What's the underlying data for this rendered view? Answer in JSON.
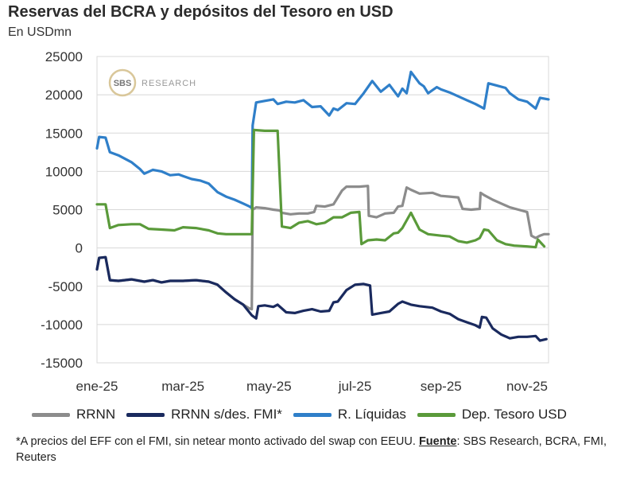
{
  "header": {
    "title": "Reservas del BCRA y depósitos del Tesoro en USD",
    "subtitle": "En USDmn"
  },
  "watermark": {
    "logo": "SBS",
    "text": "RESEARCH"
  },
  "footnote": {
    "text": "*A precios del EFF con el FMI, sin netear monto activado del swap con EEUU.",
    "source_label": "Fuente",
    "source_text": ": SBS Research, BCRA, FMI, Reuters"
  },
  "colors": {
    "RRNN": "#8c8c8c",
    "RRNN s/des. FMI*": "#1a2a5e",
    "R. Líquidas": "#2f7fc9",
    "Dep. Tesoro USD": "#5a9a3a",
    "grid": "#d8d8d8"
  },
  "chart_data": {
    "type": "line",
    "title": "Reservas del BCRA y depósitos del Tesoro en USD",
    "ylabel": "En USDmn",
    "ylim": [
      -15000,
      25000
    ],
    "yticks": [
      25000,
      20000,
      15000,
      10000,
      5000,
      0,
      -5000,
      -10000,
      -15000
    ],
    "ytick_labels": [
      "25000",
      "20000",
      "15000",
      "10000",
      "5000",
      "0",
      "-5000",
      "-10000",
      "-15000"
    ],
    "xlim": [
      0,
      10.5
    ],
    "xticks": [
      0,
      2,
      4,
      6,
      8,
      10
    ],
    "xtick_labels": [
      "ene-25",
      "mar-25",
      "may-25",
      "jul-25",
      "sep-25",
      "nov-25"
    ],
    "legend_position": "bottom",
    "series": [
      {
        "name": "RRNN",
        "points": [
          [
            0,
            -2800
          ],
          [
            0.05,
            -1300
          ],
          [
            0.2,
            -1200
          ],
          [
            0.3,
            -4200
          ],
          [
            0.5,
            -4300
          ],
          [
            0.8,
            -4100
          ],
          [
            1.1,
            -4400
          ],
          [
            1.3,
            -4200
          ],
          [
            1.5,
            -4500
          ],
          [
            1.7,
            -4300
          ],
          [
            2.0,
            -4300
          ],
          [
            2.3,
            -4200
          ],
          [
            2.6,
            -4400
          ],
          [
            2.8,
            -4800
          ],
          [
            3.0,
            -5800
          ],
          [
            3.2,
            -6700
          ],
          [
            3.4,
            -7400
          ],
          [
            3.55,
            -7900
          ],
          [
            3.6,
            -8000
          ],
          [
            3.62,
            5000
          ],
          [
            3.7,
            5300
          ],
          [
            3.9,
            5200
          ],
          [
            4.1,
            5000
          ],
          [
            4.25,
            4900
          ],
          [
            4.3,
            4600
          ],
          [
            4.5,
            4400
          ],
          [
            4.7,
            4500
          ],
          [
            4.9,
            4500
          ],
          [
            5.05,
            4700
          ],
          [
            5.1,
            5500
          ],
          [
            5.3,
            5400
          ],
          [
            5.5,
            5700
          ],
          [
            5.7,
            7500
          ],
          [
            5.8,
            8000
          ],
          [
            6.1,
            8000
          ],
          [
            6.3,
            8100
          ],
          [
            6.32,
            4200
          ],
          [
            6.5,
            4000
          ],
          [
            6.7,
            4500
          ],
          [
            6.9,
            4600
          ],
          [
            7.0,
            5400
          ],
          [
            7.1,
            5500
          ],
          [
            7.2,
            7900
          ],
          [
            7.3,
            7600
          ],
          [
            7.5,
            7100
          ],
          [
            7.8,
            7200
          ],
          [
            8.0,
            6800
          ],
          [
            8.2,
            6700
          ],
          [
            8.4,
            6600
          ],
          [
            8.5,
            5100
          ],
          [
            8.7,
            5000
          ],
          [
            8.9,
            5100
          ],
          [
            8.92,
            7200
          ],
          [
            9.0,
            6900
          ],
          [
            9.2,
            6300
          ],
          [
            9.4,
            5800
          ],
          [
            9.6,
            5300
          ],
          [
            9.8,
            5000
          ],
          [
            10.0,
            4700
          ],
          [
            10.1,
            1600
          ],
          [
            10.2,
            1300
          ],
          [
            10.3,
            1600
          ],
          [
            10.4,
            1800
          ],
          [
            10.5,
            1800
          ]
        ]
      },
      {
        "name": "RRNN s/des. FMI*",
        "points": [
          [
            0,
            -2800
          ],
          [
            0.05,
            -1300
          ],
          [
            0.2,
            -1200
          ],
          [
            0.3,
            -4200
          ],
          [
            0.5,
            -4300
          ],
          [
            0.8,
            -4100
          ],
          [
            1.1,
            -4400
          ],
          [
            1.3,
            -4200
          ],
          [
            1.5,
            -4500
          ],
          [
            1.7,
            -4300
          ],
          [
            2.0,
            -4300
          ],
          [
            2.3,
            -4200
          ],
          [
            2.6,
            -4400
          ],
          [
            2.8,
            -4800
          ],
          [
            3.0,
            -5800
          ],
          [
            3.2,
            -6700
          ],
          [
            3.4,
            -7400
          ],
          [
            3.6,
            -8800
          ],
          [
            3.7,
            -9200
          ],
          [
            3.75,
            -7600
          ],
          [
            3.9,
            -7500
          ],
          [
            4.1,
            -7700
          ],
          [
            4.2,
            -7400
          ],
          [
            4.4,
            -8400
          ],
          [
            4.6,
            -8500
          ],
          [
            4.8,
            -8200
          ],
          [
            5.0,
            -8000
          ],
          [
            5.2,
            -8300
          ],
          [
            5.4,
            -8200
          ],
          [
            5.5,
            -7100
          ],
          [
            5.6,
            -7000
          ],
          [
            5.8,
            -5500
          ],
          [
            6.0,
            -4800
          ],
          [
            6.2,
            -4700
          ],
          [
            6.35,
            -4900
          ],
          [
            6.4,
            -8700
          ],
          [
            6.6,
            -8500
          ],
          [
            6.8,
            -8300
          ],
          [
            7.0,
            -7300
          ],
          [
            7.1,
            -7000
          ],
          [
            7.3,
            -7400
          ],
          [
            7.5,
            -7600
          ],
          [
            7.8,
            -7800
          ],
          [
            8.0,
            -8300
          ],
          [
            8.2,
            -8600
          ],
          [
            8.4,
            -9300
          ],
          [
            8.6,
            -9700
          ],
          [
            8.8,
            -10100
          ],
          [
            8.9,
            -10400
          ],
          [
            8.95,
            -9000
          ],
          [
            9.05,
            -9100
          ],
          [
            9.2,
            -10500
          ],
          [
            9.4,
            -11300
          ],
          [
            9.6,
            -11800
          ],
          [
            9.8,
            -11600
          ],
          [
            10.0,
            -11600
          ],
          [
            10.2,
            -11500
          ],
          [
            10.3,
            -12100
          ],
          [
            10.45,
            -11900
          ]
        ]
      },
      {
        "name": "R. Líquidas",
        "points": [
          [
            0,
            13000
          ],
          [
            0.05,
            14500
          ],
          [
            0.2,
            14400
          ],
          [
            0.3,
            12500
          ],
          [
            0.5,
            12100
          ],
          [
            0.8,
            11200
          ],
          [
            1.0,
            10300
          ],
          [
            1.1,
            9700
          ],
          [
            1.3,
            10200
          ],
          [
            1.5,
            10000
          ],
          [
            1.7,
            9500
          ],
          [
            1.9,
            9600
          ],
          [
            2.0,
            9400
          ],
          [
            2.2,
            9000
          ],
          [
            2.4,
            8800
          ],
          [
            2.6,
            8400
          ],
          [
            2.8,
            7300
          ],
          [
            3.0,
            6700
          ],
          [
            3.2,
            6300
          ],
          [
            3.4,
            5800
          ],
          [
            3.55,
            5400
          ],
          [
            3.6,
            5200
          ],
          [
            3.62,
            16000
          ],
          [
            3.7,
            19000
          ],
          [
            3.9,
            19200
          ],
          [
            4.1,
            19400
          ],
          [
            4.2,
            18800
          ],
          [
            4.4,
            19100
          ],
          [
            4.6,
            19000
          ],
          [
            4.8,
            19300
          ],
          [
            5.0,
            18400
          ],
          [
            5.2,
            18500
          ],
          [
            5.4,
            17300
          ],
          [
            5.5,
            18200
          ],
          [
            5.6,
            18000
          ],
          [
            5.8,
            18900
          ],
          [
            6.0,
            18800
          ],
          [
            6.2,
            20200
          ],
          [
            6.4,
            21800
          ],
          [
            6.6,
            20400
          ],
          [
            6.8,
            21300
          ],
          [
            7.0,
            19800
          ],
          [
            7.1,
            20800
          ],
          [
            7.2,
            20200
          ],
          [
            7.3,
            23000
          ],
          [
            7.5,
            21500
          ],
          [
            7.6,
            21100
          ],
          [
            7.7,
            20200
          ],
          [
            7.9,
            21000
          ],
          [
            8.0,
            20700
          ],
          [
            8.2,
            20300
          ],
          [
            8.4,
            19800
          ],
          [
            8.6,
            19300
          ],
          [
            8.8,
            18800
          ],
          [
            9.0,
            18200
          ],
          [
            9.1,
            21500
          ],
          [
            9.3,
            21200
          ],
          [
            9.5,
            20900
          ],
          [
            9.6,
            20200
          ],
          [
            9.8,
            19400
          ],
          [
            10.0,
            19100
          ],
          [
            10.2,
            18200
          ],
          [
            10.3,
            19600
          ],
          [
            10.5,
            19400
          ]
        ]
      },
      {
        "name": "Dep. Tesoro USD",
        "points": [
          [
            0,
            5700
          ],
          [
            0.2,
            5700
          ],
          [
            0.3,
            2600
          ],
          [
            0.5,
            3000
          ],
          [
            0.8,
            3100
          ],
          [
            1.0,
            3100
          ],
          [
            1.2,
            2500
          ],
          [
            1.5,
            2400
          ],
          [
            1.8,
            2300
          ],
          [
            2.0,
            2700
          ],
          [
            2.3,
            2600
          ],
          [
            2.6,
            2300
          ],
          [
            2.8,
            1900
          ],
          [
            3.0,
            1800
          ],
          [
            3.3,
            1800
          ],
          [
            3.6,
            1800
          ],
          [
            3.65,
            15400
          ],
          [
            3.9,
            15300
          ],
          [
            4.2,
            15300
          ],
          [
            4.3,
            2800
          ],
          [
            4.5,
            2600
          ],
          [
            4.7,
            3300
          ],
          [
            4.9,
            3500
          ],
          [
            5.1,
            3100
          ],
          [
            5.3,
            3300
          ],
          [
            5.5,
            4000
          ],
          [
            5.7,
            4000
          ],
          [
            5.9,
            4600
          ],
          [
            6.1,
            4700
          ],
          [
            6.15,
            500
          ],
          [
            6.3,
            1000
          ],
          [
            6.5,
            1100
          ],
          [
            6.7,
            1000
          ],
          [
            6.9,
            1900
          ],
          [
            7.0,
            2000
          ],
          [
            7.1,
            2600
          ],
          [
            7.3,
            4600
          ],
          [
            7.5,
            2400
          ],
          [
            7.7,
            1800
          ],
          [
            8.0,
            1600
          ],
          [
            8.2,
            1500
          ],
          [
            8.4,
            900
          ],
          [
            8.6,
            700
          ],
          [
            8.8,
            1000
          ],
          [
            8.9,
            1300
          ],
          [
            9.0,
            2400
          ],
          [
            9.1,
            2300
          ],
          [
            9.3,
            1000
          ],
          [
            9.5,
            500
          ],
          [
            9.7,
            300
          ],
          [
            10.0,
            200
          ],
          [
            10.2,
            100
          ],
          [
            10.25,
            1100
          ],
          [
            10.4,
            200
          ]
        ]
      }
    ]
  }
}
